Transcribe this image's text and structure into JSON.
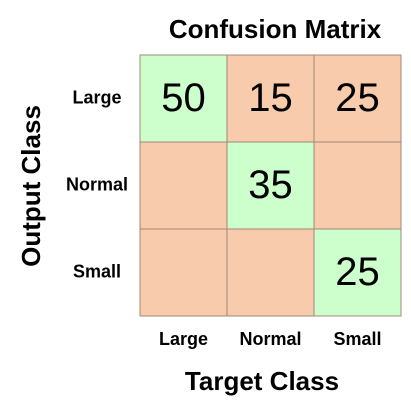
{
  "chart_data": {
    "type": "heatmap",
    "title": "Confusion Matrix",
    "x_label": "Target Class",
    "y_label": "Output Class",
    "columns": [
      "Large",
      "Normal",
      "Small"
    ],
    "rows": [
      "Large",
      "Normal",
      "Small"
    ],
    "values": [
      [
        50,
        15,
        25
      ],
      [
        null,
        35,
        null
      ],
      [
        null,
        null,
        25
      ]
    ],
    "diagonal_color": "#ccffcc",
    "off_diagonal_color": "#f8cbad"
  }
}
